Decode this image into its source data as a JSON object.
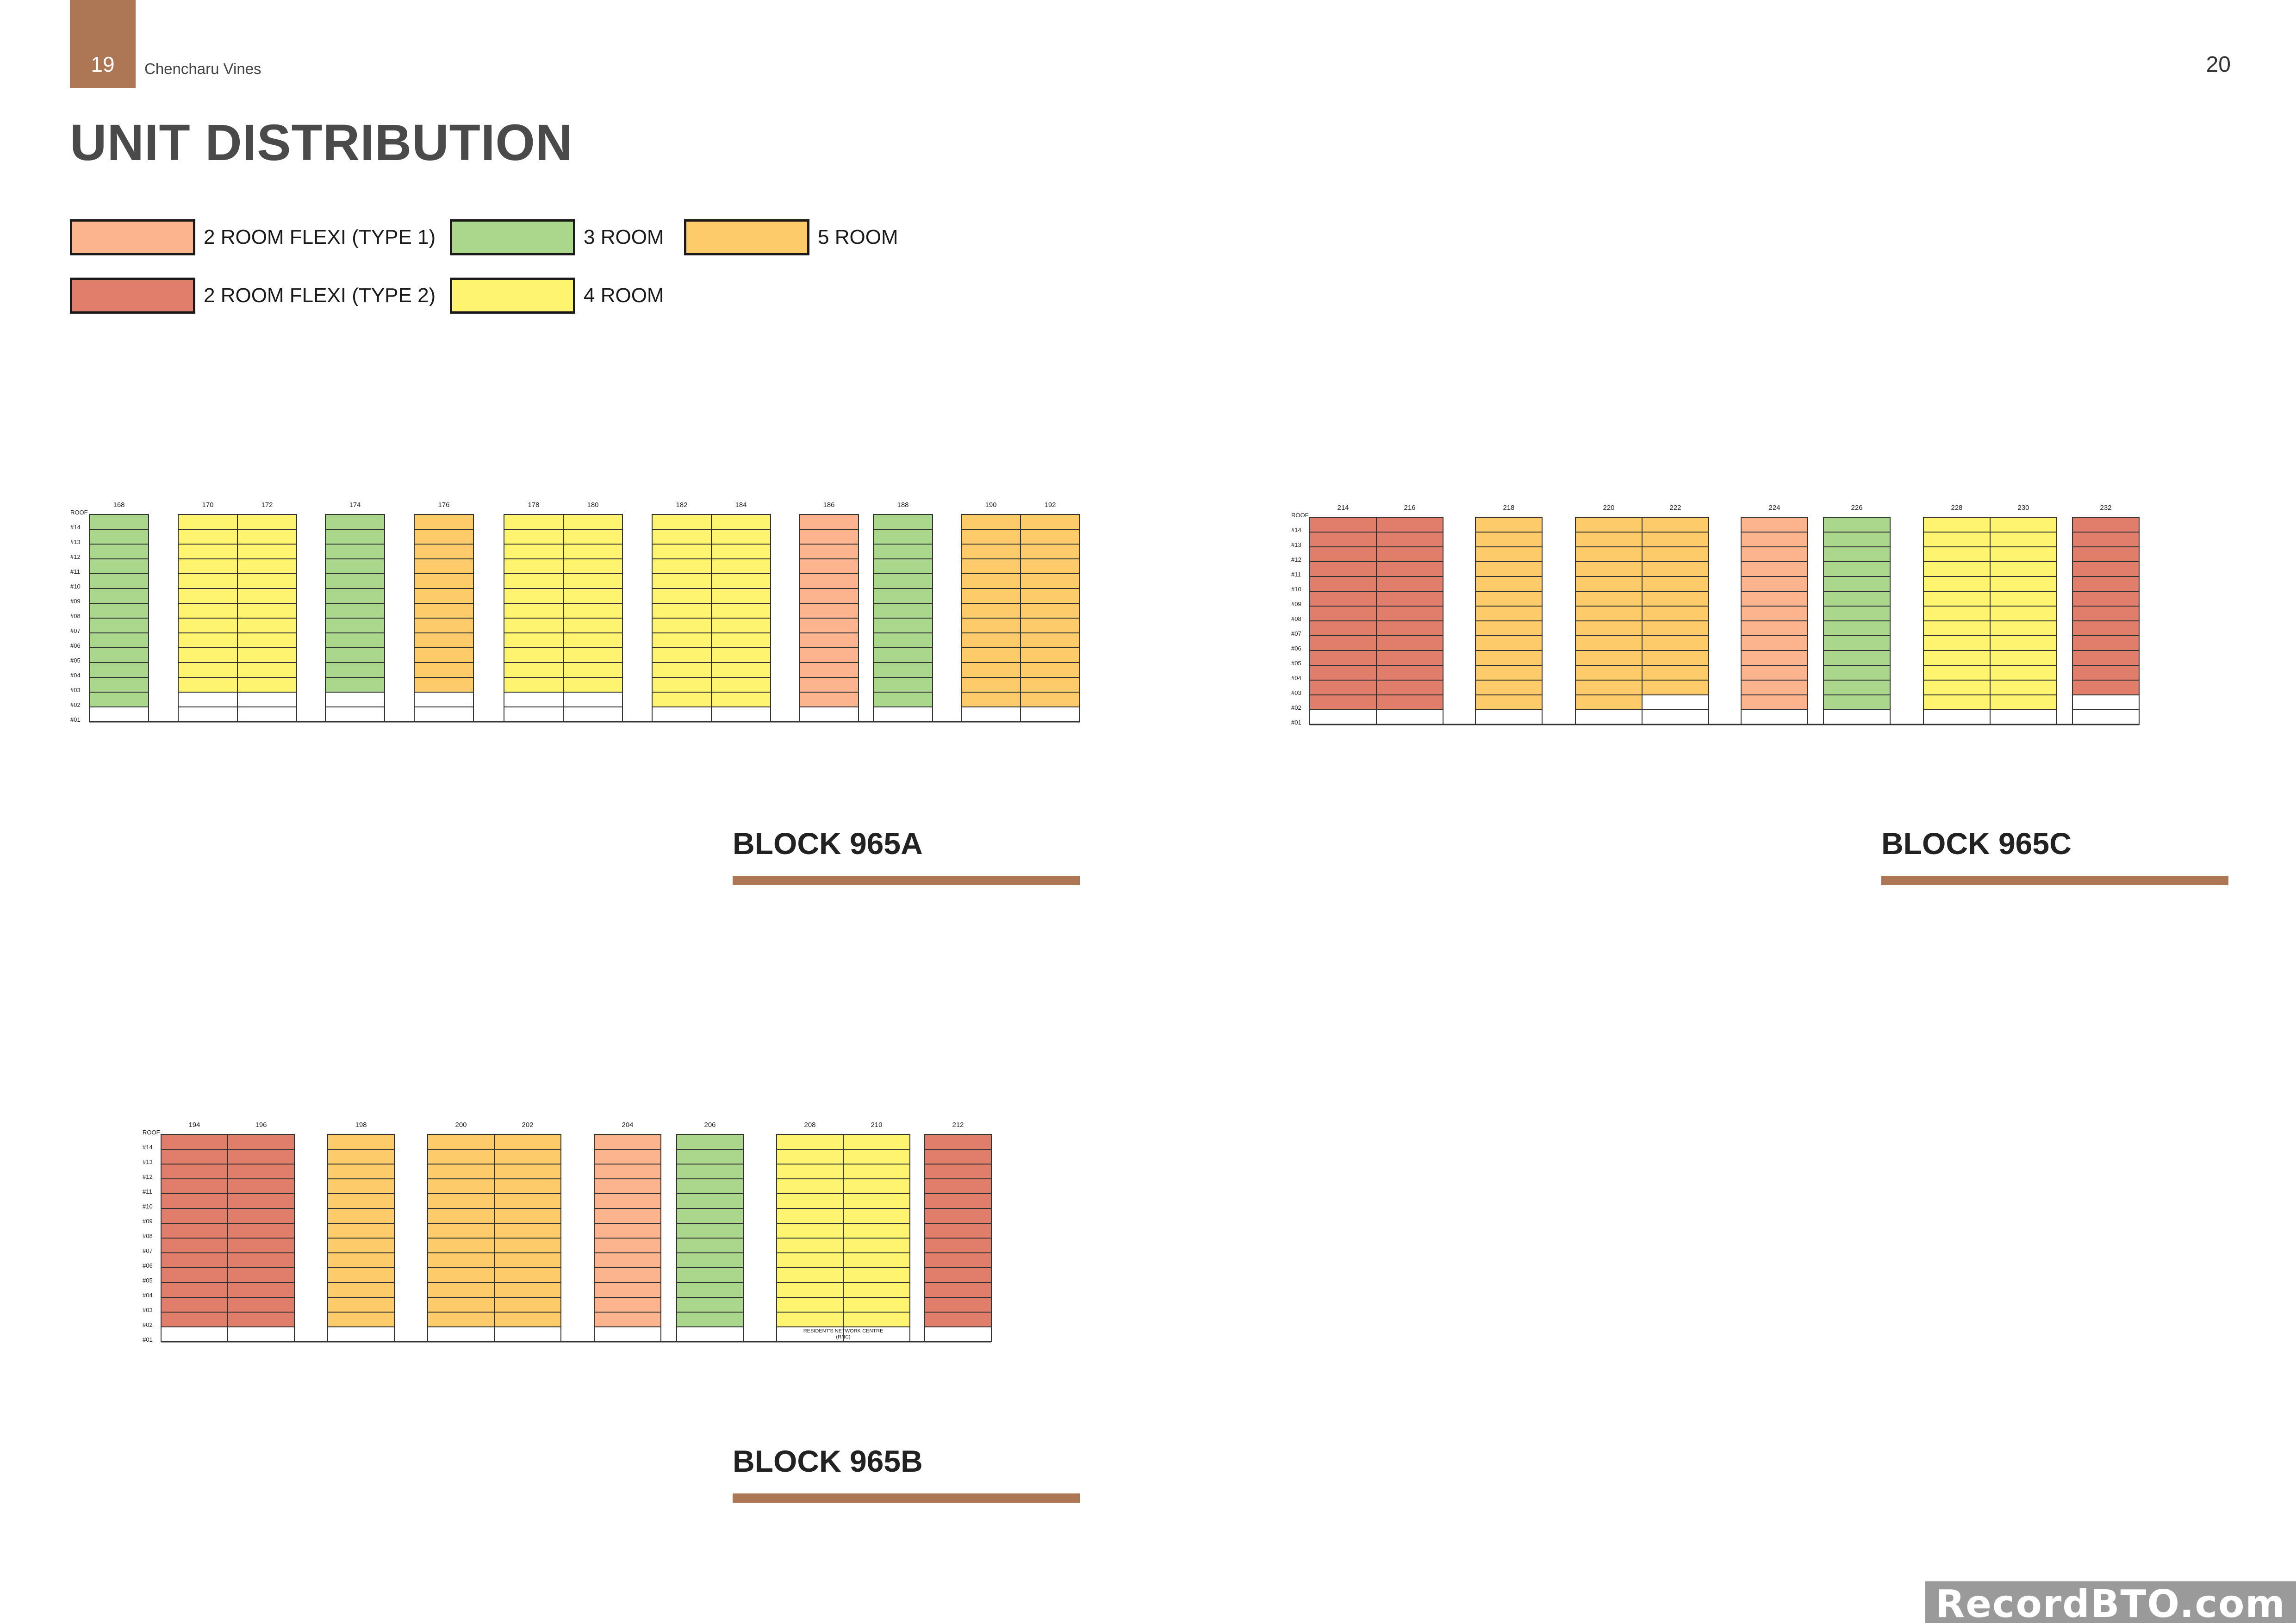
{
  "header": {
    "page_left": "19",
    "doc_name": "Chencharu Vines",
    "page_right": "20"
  },
  "title": "UNIT DISTRIBUTION",
  "legend": [
    {
      "key": "f1",
      "label": "2 ROOM FLEXI (TYPE 1)",
      "color": "#fbb48e"
    },
    {
      "key": "f2",
      "label": "2 ROOM FLEXI (TYPE 2)",
      "color": "#e07e6b"
    },
    {
      "key": "r3",
      "label": "3 ROOM",
      "color": "#abd78d"
    },
    {
      "key": "r4",
      "label": "4 ROOM",
      "color": "#fef46f"
    },
    {
      "key": "r5",
      "label": "5 ROOM",
      "color": "#fdcb69"
    }
  ],
  "floor_labels": [
    "ROOF",
    "#14",
    "#13",
    "#12",
    "#11",
    "#10",
    "#09",
    "#08",
    "#07",
    "#06",
    "#05",
    "#04",
    "#03",
    "#02",
    "#01"
  ],
  "blocks": [
    {
      "id": "block-965a",
      "title": "BLOCK 965A",
      "columns": [
        {
          "stack": "168",
          "type": "r3",
          "from": 2,
          "note": ""
        },
        {
          "stack": "170",
          "type": "r4",
          "from": 3,
          "note": ""
        },
        {
          "stack": "172",
          "type": "r4",
          "from": 3,
          "note": ""
        },
        {
          "stack": "174",
          "type": "r3",
          "from": 3,
          "note": ""
        },
        {
          "stack": "176",
          "type": "r5",
          "from": 3,
          "note": ""
        },
        {
          "stack": "178",
          "type": "r4",
          "from": 3,
          "note": ""
        },
        {
          "stack": "180",
          "type": "r4",
          "from": 3,
          "note": ""
        },
        {
          "stack": "182",
          "type": "r4",
          "from": 2,
          "note": ""
        },
        {
          "stack": "184",
          "type": "r4",
          "from": 2,
          "note": ""
        },
        {
          "stack": "186",
          "type": "f1",
          "from": 2,
          "note": ""
        },
        {
          "stack": "188",
          "type": "r3",
          "from": 2,
          "note": ""
        },
        {
          "stack": "190",
          "type": "r5",
          "from": 2,
          "note": ""
        },
        {
          "stack": "192",
          "type": "r5",
          "from": 2,
          "note": ""
        }
      ]
    },
    {
      "id": "block-965c",
      "title": "BLOCK 965C",
      "columns": [
        {
          "stack": "214",
          "type": "f2",
          "from": 2,
          "note": ""
        },
        {
          "stack": "216",
          "type": "f2",
          "from": 2,
          "note": ""
        },
        {
          "stack": "218",
          "type": "r5",
          "from": 2,
          "note": ""
        },
        {
          "stack": "220",
          "type": "r5",
          "from": 2,
          "note": ""
        },
        {
          "stack": "222",
          "type": "r5",
          "from": 3,
          "note": ""
        },
        {
          "stack": "224",
          "type": "f1",
          "from": 2,
          "note": ""
        },
        {
          "stack": "226",
          "type": "r3",
          "from": 2,
          "note": ""
        },
        {
          "stack": "228",
          "type": "r4",
          "from": 2,
          "note": ""
        },
        {
          "stack": "230",
          "type": "r4",
          "from": 2,
          "note": ""
        },
        {
          "stack": "232",
          "type": "f2",
          "from": 3,
          "note": ""
        }
      ]
    },
    {
      "id": "block-965b",
      "title": "BLOCK 965B",
      "columns": [
        {
          "stack": "194",
          "type": "f2",
          "from": 2,
          "note": ""
        },
        {
          "stack": "196",
          "type": "f2",
          "from": 2,
          "note": ""
        },
        {
          "stack": "198",
          "type": "r5",
          "from": 2,
          "note": ""
        },
        {
          "stack": "200",
          "type": "r5",
          "from": 2,
          "note": ""
        },
        {
          "stack": "202",
          "type": "r5",
          "from": 2,
          "note": ""
        },
        {
          "stack": "204",
          "type": "f1",
          "from": 2,
          "note": ""
        },
        {
          "stack": "206",
          "type": "r3",
          "from": 2,
          "note": ""
        },
        {
          "stack": "208",
          "type": "r4",
          "from": 2,
          "note": ""
        },
        {
          "stack": "210",
          "type": "r4",
          "from": 2,
          "note": ""
        },
        {
          "stack": "212",
          "type": "f2",
          "from": 2,
          "note": ""
        }
      ],
      "rnc_label": [
        "RESIDENT'S NETWORK CENTRE",
        "(RNC)"
      ]
    }
  ],
  "watermark": "RecordBTO.com"
}
